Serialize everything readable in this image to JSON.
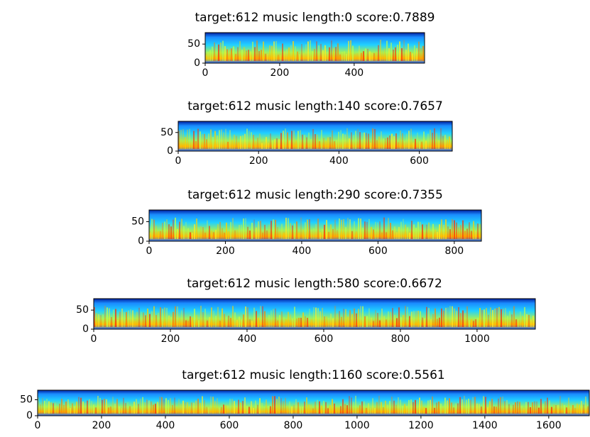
{
  "chart_data": [
    {
      "type": "image",
      "title": "target:612  music length:0  score:0.7889",
      "xlim": [
        0,
        589
      ],
      "ylim": [
        0,
        80
      ],
      "xticks": [
        0,
        200,
        400
      ],
      "yticks": [
        0,
        50
      ]
    },
    {
      "type": "image",
      "title": "target:612  music length:140  score:0.7657",
      "xlim": [
        0,
        682
      ],
      "ylim": [
        0,
        80
      ],
      "xticks": [
        0,
        200,
        400,
        600
      ],
      "yticks": [
        0,
        50
      ]
    },
    {
      "type": "image",
      "title": "target:612  music length:290  score:0.7355",
      "xlim": [
        0,
        871
      ],
      "ylim": [
        0,
        80
      ],
      "xticks": [
        0,
        200,
        400,
        600,
        800
      ],
      "yticks": [
        0,
        50
      ]
    },
    {
      "type": "image",
      "title": "target:612  music length:580  score:0.6672",
      "xlim": [
        0,
        1152
      ],
      "ylim": [
        0,
        80
      ],
      "xticks": [
        0,
        200,
        400,
        600,
        800,
        1000
      ],
      "yticks": [
        0,
        50
      ]
    },
    {
      "type": "image",
      "title": "target:612  music length:1160  score:0.5561",
      "xlim": [
        0,
        1727
      ],
      "ylim": [
        0,
        80
      ],
      "xticks": [
        0,
        200,
        400,
        600,
        800,
        1000,
        1200,
        1400,
        1600
      ],
      "yticks": [
        0,
        50
      ]
    }
  ]
}
